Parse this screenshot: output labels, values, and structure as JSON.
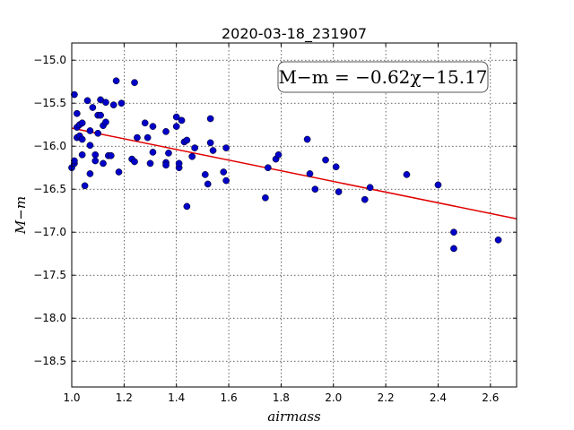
{
  "chart_data": {
    "type": "scatter",
    "title": "2020-03-18_231907",
    "xlabel": "airmass",
    "ylabel": "M−m",
    "xlim": [
      1.0,
      2.7
    ],
    "ylim": [
      -18.8,
      -14.8
    ],
    "y_inverted": false,
    "grid": true,
    "xticks": [
      1.0,
      1.2,
      1.4,
      1.6,
      1.8,
      2.0,
      2.2,
      2.4,
      2.6
    ],
    "xtick_labels": [
      "1.0",
      "1.2",
      "1.4",
      "1.6",
      "1.8",
      "2.0",
      "2.2",
      "2.4",
      "2.6"
    ],
    "yticks": [
      -15.0,
      -15.5,
      -16.0,
      -16.5,
      -17.0,
      -17.5,
      -18.0,
      -18.5
    ],
    "ytick_labels": [
      "−15.0",
      "−15.5",
      "−16.0",
      "−16.5",
      "−17.0",
      "−17.5",
      "−18.0",
      "−18.5"
    ],
    "annotation": "M−m = −0.62χ−15.17",
    "annotation_placement": "top-right",
    "fit": {
      "slope": -0.62,
      "intercept": -15.17,
      "color": "#e00000"
    },
    "point_color": "#0000c8",
    "points": [
      [
        1.0,
        -16.25
      ],
      [
        1.01,
        -16.2
      ],
      [
        1.01,
        -16.17
      ],
      [
        1.01,
        -15.4
      ],
      [
        1.02,
        -15.78
      ],
      [
        1.02,
        -15.62
      ],
      [
        1.03,
        -15.75
      ],
      [
        1.02,
        -15.9
      ],
      [
        1.03,
        -15.88
      ],
      [
        1.04,
        -15.92
      ],
      [
        1.04,
        -15.73
      ],
      [
        1.04,
        -16.1
      ],
      [
        1.05,
        -16.46
      ],
      [
        1.06,
        -15.47
      ],
      [
        1.07,
        -15.99
      ],
      [
        1.07,
        -16.32
      ],
      [
        1.07,
        -15.82
      ],
      [
        1.08,
        -15.55
      ],
      [
        1.09,
        -16.1
      ],
      [
        1.09,
        -16.17
      ],
      [
        1.1,
        -15.64
      ],
      [
        1.1,
        -15.85
      ],
      [
        1.11,
        -15.64
      ],
      [
        1.11,
        -15.46
      ],
      [
        1.12,
        -16.2
      ],
      [
        1.12,
        -15.76
      ],
      [
        1.13,
        -15.72
      ],
      [
        1.13,
        -15.49
      ],
      [
        1.14,
        -16.11
      ],
      [
        1.15,
        -16.11
      ],
      [
        1.16,
        -15.52
      ],
      [
        1.17,
        -15.24
      ],
      [
        1.18,
        -16.3
      ],
      [
        1.19,
        -15.5
      ],
      [
        1.23,
        -16.15
      ],
      [
        1.24,
        -15.26
      ],
      [
        1.24,
        -16.18
      ],
      [
        1.25,
        -15.9
      ],
      [
        1.28,
        -15.73
      ],
      [
        1.29,
        -15.9
      ],
      [
        1.3,
        -16.2
      ],
      [
        1.31,
        -16.07
      ],
      [
        1.31,
        -15.77
      ],
      [
        1.36,
        -16.19
      ],
      [
        1.36,
        -16.22
      ],
      [
        1.37,
        -16.08
      ],
      [
        1.36,
        -15.83
      ],
      [
        1.4,
        -15.66
      ],
      [
        1.4,
        -15.77
      ],
      [
        1.41,
        -16.25
      ],
      [
        1.41,
        -16.2
      ],
      [
        1.42,
        -15.7
      ],
      [
        1.43,
        -15.95
      ],
      [
        1.44,
        -15.93
      ],
      [
        1.44,
        -16.7
      ],
      [
        1.46,
        -16.12
      ],
      [
        1.47,
        -16.02
      ],
      [
        1.51,
        -16.33
      ],
      [
        1.52,
        -16.44
      ],
      [
        1.53,
        -15.68
      ],
      [
        1.53,
        -15.96
      ],
      [
        1.54,
        -16.05
      ],
      [
        1.58,
        -16.3
      ],
      [
        1.59,
        -16.02
      ],
      [
        1.59,
        -16.4
      ],
      [
        1.74,
        -16.6
      ],
      [
        1.75,
        -16.25
      ],
      [
        1.78,
        -16.15
      ],
      [
        1.79,
        -16.1
      ],
      [
        1.9,
        -15.92
      ],
      [
        1.91,
        -16.32
      ],
      [
        1.93,
        -16.5
      ],
      [
        1.97,
        -16.16
      ],
      [
        2.01,
        -16.24
      ],
      [
        2.02,
        -16.53
      ],
      [
        2.12,
        -16.62
      ],
      [
        2.14,
        -16.48
      ],
      [
        2.28,
        -16.33
      ],
      [
        2.4,
        -16.45
      ],
      [
        2.46,
        -17.0
      ],
      [
        2.46,
        -17.19
      ],
      [
        2.63,
        -17.09
      ]
    ]
  }
}
